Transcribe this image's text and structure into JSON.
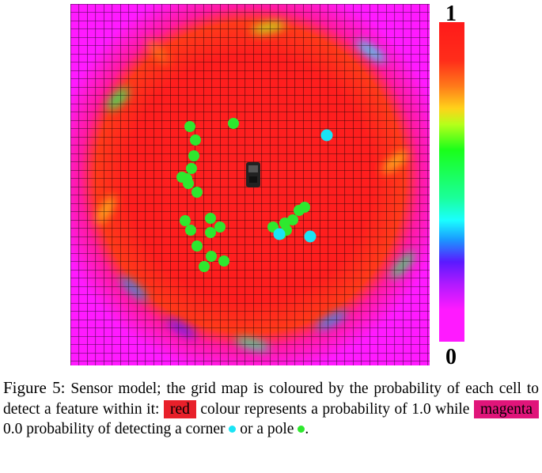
{
  "figure": {
    "colorbar": {
      "max_label": "1",
      "min_label": "0"
    },
    "legend_colors": {
      "red": "#e8202a",
      "magenta": "#e0157a",
      "corner": "#1ae4f5",
      "pole": "#2ee82e"
    },
    "features": {
      "poles": [
        [
          240,
          160
        ],
        [
          295,
          156
        ],
        [
          247,
          177
        ],
        [
          245,
          197
        ],
        [
          242,
          213
        ],
        [
          230,
          224
        ],
        [
          238,
          232
        ],
        [
          236,
          226
        ],
        [
          249,
          243
        ],
        [
          234,
          279
        ],
        [
          241,
          291
        ],
        [
          266,
          276
        ],
        [
          278,
          287
        ],
        [
          266,
          294
        ],
        [
          249,
          311
        ],
        [
          267,
          324
        ],
        [
          258,
          337
        ],
        [
          283,
          330
        ],
        [
          345,
          287
        ],
        [
          360,
          282
        ],
        [
          362,
          291
        ],
        [
          370,
          278
        ],
        [
          378,
          266
        ],
        [
          385,
          262
        ],
        [
          355,
          296
        ]
      ],
      "corners": [
        [
          413,
          171
        ],
        [
          353,
          296
        ],
        [
          392,
          299
        ]
      ]
    }
  },
  "caption": {
    "prefix": "Figure 5:",
    "text1": " Sensor model; the grid map is coloured by the probability of each cell to detect a feature within it: ",
    "red_word": "red",
    "text2": " colour represents a probability of 1.0 while ",
    "magenta_word": "magenta",
    "text3": " 0.0 probability of detecting a corner ",
    "text4": " or a pole ",
    "text5": "."
  }
}
